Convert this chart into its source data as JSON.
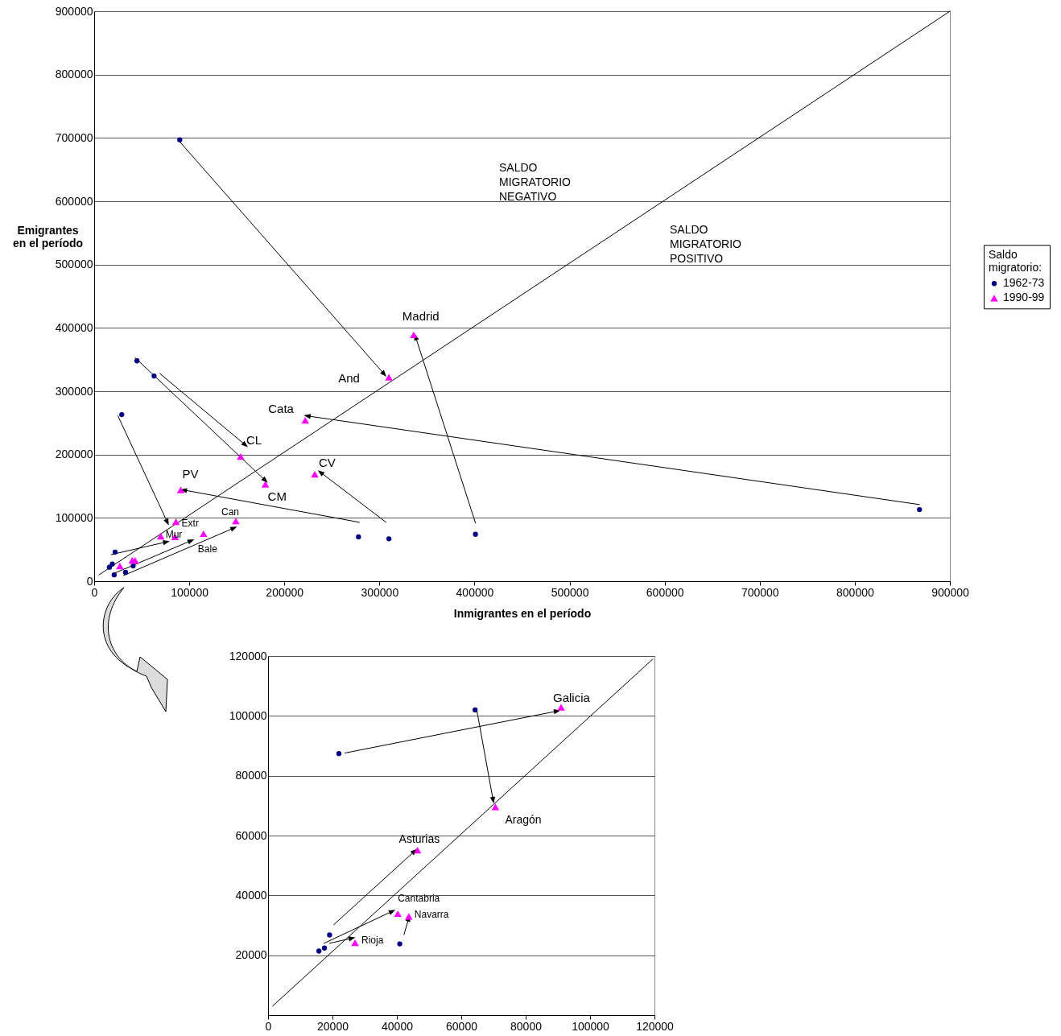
{
  "chart_data": [
    {
      "type": "scatter",
      "xlabel": "Inmigrantes en el período",
      "ylabel": "Emigrantes\nen el período",
      "legend_title": "Saldo migratorio:",
      "legend": "right",
      "grid": "y",
      "xlim": [
        0,
        900000
      ],
      "ylim": [
        0,
        900000
      ],
      "xticks": [
        0,
        100000,
        200000,
        300000,
        400000,
        500000,
        600000,
        700000,
        800000,
        900000
      ],
      "yticks": [
        0,
        100000,
        200000,
        300000,
        400000,
        500000,
        600000,
        700000,
        800000,
        900000
      ],
      "series": [
        {
          "type": "line",
          "color": "#000000",
          "marker": "none",
          "x": [
            5000,
            900000
          ],
          "values": [
            10000,
            900000
          ]
        },
        {
          "name": "1962-73",
          "color": "#000080",
          "marker": "circle",
          "x": [
            90000,
            45000,
            63000,
            29000,
            278000,
            310000,
            401000,
            868000,
            22000,
            19000,
            16000,
            21000,
            33000,
            41000
          ],
          "values": [
            697000,
            348000,
            324000,
            263000,
            70000,
            67000,
            74000,
            113000,
            46000,
            27000,
            22000,
            10000,
            14000,
            24000
          ]
        },
        {
          "name": "1990-99",
          "color": "#ff00ff",
          "marker": "triangle",
          "x": [
            336000,
            310000,
            222000,
            154000,
            180000,
            232000,
            91000,
            149000,
            86000,
            70000,
            85000,
            115000,
            27000,
            40000,
            43000
          ],
          "values": [
            389000,
            322000,
            254000,
            197000,
            153000,
            169000,
            144000,
            95000,
            94000,
            71000,
            70000,
            75000,
            24000,
            33000,
            33000
          ]
        },
        {
          "type": "line",
          "color": "#000000",
          "marker": "triangle",
          "x": [
            90000,
            305000
          ],
          "values": [
            694000,
            327000
          ]
        },
        {
          "type": "line",
          "color": "#000000",
          "marker": "triangle",
          "x": [
            401000,
            338000
          ],
          "values": [
            92000,
            386000
          ]
        },
        {
          "type": "line",
          "color": "#000000",
          "marker": "triangle",
          "x": [
            868000,
            224000
          ],
          "values": [
            121000,
            261000
          ]
        },
        {
          "type": "line",
          "color": "#000000",
          "marker": "triangle",
          "x": [
            69000,
            159000
          ],
          "values": [
            328000,
            215000
          ]
        },
        {
          "type": "line",
          "color": "#000000",
          "marker": "triangle",
          "x": [
            43000,
            180000
          ],
          "values": [
            353000,
            159000
          ]
        },
        {
          "type": "line",
          "color": "#000000",
          "marker": "triangle",
          "x": [
            25000,
            77000
          ],
          "values": [
            261000,
            93000
          ]
        },
        {
          "type": "line",
          "color": "#000000",
          "marker": "triangle",
          "x": [
            279000,
            94000
          ],
          "values": [
            93000,
            144000
          ]
        },
        {
          "type": "line",
          "color": "#000000",
          "marker": "triangle",
          "x": [
            307000,
            238000
          ],
          "values": [
            93000,
            172000
          ]
        },
        {
          "type": "line",
          "color": "#000000",
          "marker": "triangle",
          "x": [
            18000,
            76000
          ],
          "values": [
            42000,
            62000
          ]
        },
        {
          "type": "line",
          "color": "#000000",
          "marker": "triangle",
          "x": [
            22000,
            102000
          ],
          "values": [
            13000,
            64000
          ]
        },
        {
          "type": "line",
          "color": "#000000",
          "marker": "triangle",
          "x": [
            31000,
            147000
          ],
          "values": [
            9000,
            84000
          ]
        }
      ],
      "annotations": [
        "SALDO\nMIGRATORIO\nNEGATIVO",
        "SALDO\nMIGRATORIO\nPOSITIVO",
        {
          "text": "Madrid",
          "x": 336000,
          "y": 389000
        },
        {
          "text": "And",
          "x": 310000,
          "y": 322000
        },
        {
          "text": "Cata",
          "x": 222000,
          "y": 254000
        },
        {
          "text": "CL",
          "x": 154000,
          "y": 197000
        },
        {
          "text": "CM",
          "x": 180000,
          "y": 153000
        },
        {
          "text": "CV",
          "x": 232000,
          "y": 169000
        },
        {
          "text": "PV",
          "x": 91000,
          "y": 144000
        },
        {
          "text": "Can",
          "x": 149000,
          "y": 95000
        },
        {
          "text": "Extr",
          "x": 86000,
          "y": 94000
        },
        {
          "text": "Mur",
          "x": 70000,
          "y": 71000
        },
        {
          "text": "Bale",
          "x": 115000,
          "y": 75000
        }
      ]
    },
    {
      "type": "scatter",
      "grid": "y",
      "xlim": [
        0,
        120000
      ],
      "ylim": [
        0,
        120000
      ],
      "xticks": [
        0,
        20000,
        40000,
        60000,
        80000,
        100000,
        120000
      ],
      "yticks": [
        20000,
        40000,
        60000,
        80000,
        100000,
        120000
      ],
      "series": [
        {
          "type": "line",
          "color": "#000000",
          "marker": "none",
          "x": [
            1400,
            119500
          ],
          "values": [
            3000,
            119000
          ]
        },
        {
          "color": "#000080",
          "marker": "circle",
          "x": [
            22000,
            64300,
            19100,
            17500,
            15800,
            40900
          ],
          "values": [
            87400,
            102000,
            26800,
            22400,
            21400,
            23800
          ]
        },
        {
          "color": "#ff00ff",
          "marker": "triangle",
          "x": [
            91000,
            70600,
            46400,
            40300,
            43700,
            27000
          ],
          "values": [
            102900,
            69600,
            55100,
            33900,
            33000,
            24200
          ]
        },
        {
          "type": "line",
          "color": "#000000",
          "marker": "triangle",
          "x": [
            23900,
            89800
          ],
          "values": [
            87600,
            101600
          ]
        },
        {
          "type": "line",
          "color": "#000000",
          "marker": "triangle",
          "x": [
            64900,
            69900
          ],
          "values": [
            101500,
            71800
          ]
        },
        {
          "type": "line",
          "color": "#000000",
          "marker": "triangle",
          "x": [
            20400,
            45500
          ],
          "values": [
            30200,
            54800
          ]
        },
        {
          "type": "line",
          "color": "#000000",
          "marker": "triangle",
          "x": [
            17400,
            38600
          ],
          "values": [
            24000,
            34700
          ]
        },
        {
          "type": "line",
          "color": "#000000",
          "marker": "triangle",
          "x": [
            19100,
            26100
          ],
          "values": [
            24000,
            25700
          ]
        },
        {
          "type": "line",
          "color": "#000000",
          "marker": "triangle",
          "x": [
            42200,
            43700
          ],
          "values": [
            26900,
            32400
          ]
        }
      ],
      "annotations": [
        {
          "text": "Galicia",
          "x": 91000,
          "y": 102900
        },
        {
          "text": "Aragón",
          "x": 70600,
          "y": 69600
        },
        {
          "text": "Asturias",
          "x": 46400,
          "y": 55100
        },
        {
          "text": "Cantabria",
          "x": 40300,
          "y": 33900
        },
        {
          "text": "Navarra",
          "x": 43700,
          "y": 33000
        },
        {
          "text": "Rioja",
          "x": 27000,
          "y": 24200
        }
      ]
    }
  ]
}
